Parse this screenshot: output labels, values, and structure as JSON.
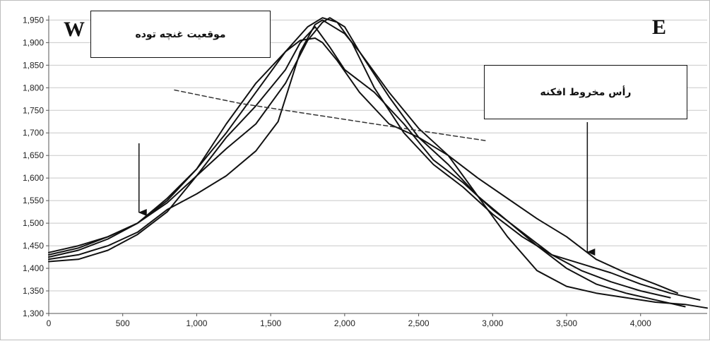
{
  "chart_data": {
    "type": "line",
    "title": "",
    "xlabel": "",
    "ylabel": "",
    "xlim": [
      0,
      4450
    ],
    "ylim": [
      1300,
      1960
    ],
    "x_ticks": [
      0,
      500,
      1000,
      1500,
      2000,
      2500,
      3000,
      3500,
      4000
    ],
    "x_tick_labels": [
      "0",
      "500",
      "1,000",
      "1,500",
      "2,000",
      "2,500",
      "3,000",
      "3,500",
      "4,000"
    ],
    "y_ticks": [
      1300,
      1350,
      1400,
      1450,
      1500,
      1550,
      1600,
      1650,
      1700,
      1750,
      1800,
      1850,
      1900,
      1950
    ],
    "y_tick_labels": [
      "1,300",
      "1,350",
      "1,400",
      "1,450",
      "1,500",
      "1,550",
      "1,600",
      "1,650",
      "1,700",
      "1,750",
      "1,800",
      "1,850",
      "1,900",
      "1,950"
    ],
    "grid": true,
    "series": [
      {
        "color": "#111111",
        "style": "solid",
        "x": [
          0,
          200,
          400,
          600,
          800,
          1000,
          1200,
          1400,
          1600,
          1750,
          1850,
          1950,
          2050,
          2200,
          2400,
          2600,
          2800,
          3000,
          3200,
          3400,
          3600,
          3800,
          4000,
          4200
        ],
        "y": [
          1425,
          1440,
          1465,
          1500,
          1555,
          1620,
          1700,
          1790,
          1880,
          1935,
          1955,
          1945,
          1900,
          1800,
          1700,
          1630,
          1580,
          1520,
          1470,
          1430,
          1395,
          1370,
          1350,
          1335
        ]
      },
      {
        "color": "#111111",
        "style": "solid",
        "x": [
          0,
          200,
          400,
          600,
          800,
          1000,
          1200,
          1400,
          1600,
          1750,
          1850,
          1900,
          2000,
          2100,
          2300,
          2500,
          2700,
          2900,
          3100,
          3300,
          3500,
          3700,
          3900,
          4100,
          4300
        ],
        "y": [
          1430,
          1445,
          1470,
          1500,
          1545,
          1605,
          1665,
          1720,
          1810,
          1905,
          1945,
          1955,
          1935,
          1880,
          1780,
          1690,
          1630,
          1560,
          1505,
          1450,
          1400,
          1365,
          1345,
          1330,
          1315
        ]
      },
      {
        "color": "#111111",
        "style": "solid",
        "x": [
          0,
          200,
          400,
          600,
          800,
          1000,
          1200,
          1400,
          1550,
          1700,
          1800,
          1850,
          1900,
          2000,
          2100,
          2300,
          2500,
          2700,
          2900,
          3100,
          3300,
          3500,
          3700,
          3900,
          4100,
          4250
        ],
        "y": [
          1420,
          1430,
          1450,
          1480,
          1530,
          1565,
          1605,
          1660,
          1725,
          1880,
          1940,
          1950,
          1940,
          1920,
          1880,
          1790,
          1710,
          1650,
          1600,
          1555,
          1510,
          1470,
          1420,
          1390,
          1365,
          1345
        ]
      },
      {
        "color": "#111111",
        "style": "solid",
        "x": [
          0,
          200,
          400,
          600,
          800,
          1000,
          1200,
          1400,
          1600,
          1700,
          1800,
          1900,
          2000,
          2200,
          2400,
          2600,
          2800,
          3000,
          3200,
          3400,
          3600,
          3800,
          4000,
          4200,
          4400
        ],
        "y": [
          1415,
          1420,
          1440,
          1475,
          1525,
          1605,
          1690,
          1760,
          1840,
          1900,
          1935,
          1890,
          1840,
          1790,
          1720,
          1640,
          1590,
          1530,
          1480,
          1430,
          1410,
          1390,
          1365,
          1345,
          1330
        ]
      },
      {
        "color": "#111111",
        "style": "solid",
        "x": [
          0,
          200,
          400,
          600,
          800,
          1000,
          1200,
          1400,
          1600,
          1700,
          1800,
          1850,
          1950,
          2100,
          2300,
          2500,
          2700,
          2900,
          3100,
          3300,
          3500,
          3700,
          3900,
          4100,
          4300,
          4450
        ],
        "y": [
          1435,
          1450,
          1470,
          1500,
          1550,
          1620,
          1720,
          1810,
          1880,
          1905,
          1910,
          1900,
          1860,
          1790,
          1720,
          1690,
          1650,
          1560,
          1470,
          1395,
          1360,
          1345,
          1335,
          1325,
          1320,
          1312
        ]
      },
      {
        "color": "#333333",
        "style": "dashed",
        "x": [
          850,
          1300,
          1800,
          2300,
          2950
        ],
        "y": [
          1795,
          1765,
          1740,
          1715,
          1683
        ]
      }
    ],
    "annotations": [
      {
        "text": "W",
        "kind": "corner-label",
        "position": "top-left"
      },
      {
        "text": "E",
        "kind": "corner-label",
        "position": "top-right"
      },
      {
        "text": "موقعیت غنچه توده",
        "kind": "boxed-note",
        "position": "top-left",
        "arrow_x": 610
      },
      {
        "text": "رأس مخروط افکنه",
        "kind": "boxed-note",
        "position": "top-right",
        "arrow_x": 3640
      }
    ]
  }
}
